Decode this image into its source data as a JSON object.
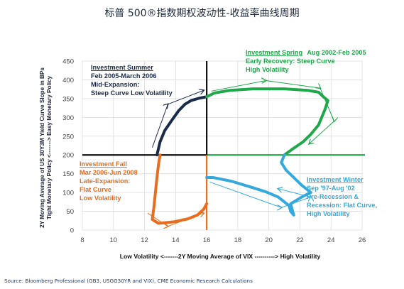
{
  "title": "标普 500®指数期权波动性-收益率曲线周期",
  "source": "Source: Bloomberg Professional (GB3, USGG30YR and VIX), CME Economic Research Calculations",
  "chart_data": {
    "type": "line",
    "xlim": [
      8,
      26
    ],
    "ylim": [
      0,
      450
    ],
    "xticks": [
      "8",
      "10",
      "12",
      "14",
      "16",
      "18",
      "20",
      "22",
      "24",
      "26"
    ],
    "yticks": [
      "0",
      "50",
      "100",
      "150",
      "200",
      "250",
      "300",
      "350",
      "400",
      "450"
    ],
    "grid": true,
    "xlabel": "Low Volatility <-------2Y Moving Average of VIX ----------> High Volatility",
    "ylabel": [
      "2Y Moving Average of US 30Y3M Yield Curve Slope in BPs",
      "Tight Monetary Policy <-------> Easy Monetary Policy"
    ],
    "divider_x": 16,
    "divider_y": 200,
    "quadrants": [
      {
        "name": "Investment Summer",
        "lines": [
          "Feb 2005-March 2006",
          "Mid-Expansion:",
          "Steep Curve  Low Volatility"
        ],
        "color": "#1a2b4a",
        "points": [
          [
            12.8,
            200
          ],
          [
            13.0,
            235
          ],
          [
            13.3,
            265
          ],
          [
            13.8,
            295
          ],
          [
            14.2,
            318
          ],
          [
            14.6,
            335
          ],
          [
            15.0,
            345
          ],
          [
            15.5,
            351
          ],
          [
            16.0,
            355
          ]
        ],
        "trend": [
          [
            12.5,
            220
          ],
          [
            13.5,
            335
          ],
          [
            15.8,
            372
          ]
        ]
      },
      {
        "name": "Investment Spring",
        "extra": "Aug 2002-Feb 2005",
        "lines": [
          "Early Recovery:  Steep Curve",
          "High Volatility"
        ],
        "color": "#1fa84a",
        "points": [
          [
            16.0,
            355
          ],
          [
            16.5,
            365
          ],
          [
            17.5,
            372
          ],
          [
            19.0,
            376
          ],
          [
            21.0,
            376
          ],
          [
            22.5,
            372
          ],
          [
            23.2,
            367
          ],
          [
            23.5,
            355
          ],
          [
            23.8,
            345
          ],
          [
            23.6,
            320
          ],
          [
            23.2,
            280
          ],
          [
            22.7,
            255
          ],
          [
            22.2,
            235
          ],
          [
            21.5,
            215
          ],
          [
            21.0,
            200
          ]
        ],
        "trend": [
          [
            16.3,
            370
          ],
          [
            19.8,
            398
          ],
          [
            23.3,
            378
          ],
          [
            24.2,
            290
          ],
          [
            22.6,
            230
          ]
        ]
      },
      {
        "name": "Investment Winter",
        "lines": [
          "Sep '97-Aug '02",
          "Pre-Recession &",
          "Recession: Flat Curve,",
          "High Volatility"
        ],
        "color": "#36a9dc",
        "points": [
          [
            21.0,
            200
          ],
          [
            20.8,
            180
          ],
          [
            21.1,
            160
          ],
          [
            21.6,
            140
          ],
          [
            22.1,
            120
          ],
          [
            22.7,
            100
          ],
          [
            22.2,
            90
          ],
          [
            21.8,
            80
          ],
          [
            21.4,
            70
          ],
          [
            21.5,
            55
          ],
          [
            21.6,
            40
          ],
          [
            21.4,
            50
          ],
          [
            21.3,
            65
          ],
          [
            20.6,
            88
          ],
          [
            19.8,
            102
          ],
          [
            18.8,
            115
          ],
          [
            17.6,
            130
          ],
          [
            16.4,
            140
          ],
          [
            16.0,
            140
          ]
        ],
        "trend": [
          [
            16.2,
            128
          ],
          [
            20.8,
            60
          ],
          [
            22.7,
            88
          ],
          [
            20.6,
            110
          ]
        ]
      },
      {
        "name": "Investment Fall",
        "lines": [
          "Mar 2006-Jun 2008",
          "Late-Expansion:",
          "Flat Curve",
          "Low Volatility"
        ],
        "color": "#e86e1f",
        "points": [
          [
            16.0,
            70
          ],
          [
            15.8,
            55
          ],
          [
            15.4,
            40
          ],
          [
            14.8,
            30
          ],
          [
            13.9,
            22
          ],
          [
            12.9,
            18
          ],
          [
            12.5,
            28
          ],
          [
            12.6,
            60
          ],
          [
            12.7,
            100
          ],
          [
            12.8,
            140
          ],
          [
            12.9,
            175
          ],
          [
            13.0,
            200
          ]
        ],
        "trend": [
          [
            12.2,
            45
          ],
          [
            13.5,
            10
          ],
          [
            15.8,
            45
          ]
        ]
      }
    ]
  }
}
